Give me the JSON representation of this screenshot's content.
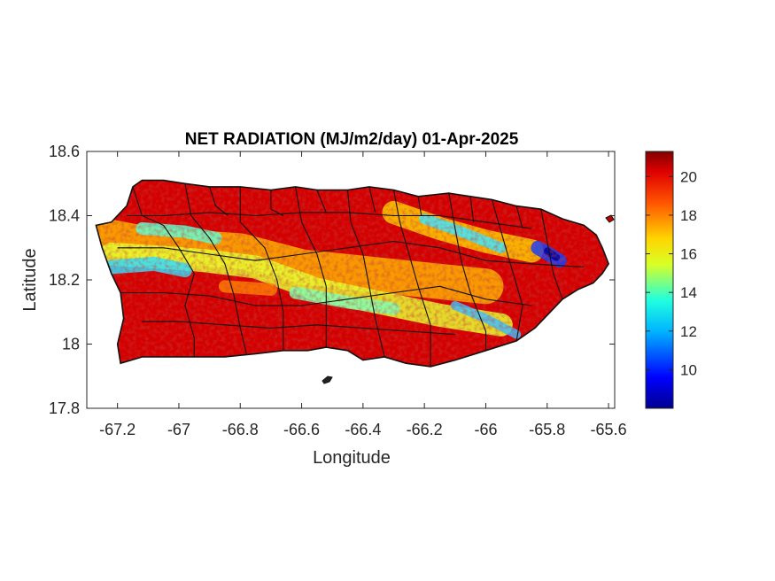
{
  "chart_data": {
    "type": "heatmap",
    "title": "NET RADIATION (MJ/m2/day) 01-Apr-2025",
    "xlabel": "Longitude",
    "ylabel": "Latitude",
    "xlim": [
      -67.3,
      -65.58
    ],
    "ylim": [
      17.8,
      18.6
    ],
    "x_ticks": [
      -67.2,
      -67.0,
      -66.8,
      -66.6,
      -66.4,
      -66.2,
      -66.0,
      -65.8,
      -65.6
    ],
    "x_tick_labels": [
      "-67.2",
      "-67",
      "-66.8",
      "-66.6",
      "-66.4",
      "-66.2",
      "-66",
      "-65.8",
      "-65.6"
    ],
    "y_ticks": [
      17.8,
      18.0,
      18.2,
      18.4,
      18.6
    ],
    "y_tick_labels": [
      "17.8",
      "18",
      "18.2",
      "18.4",
      "18.6"
    ],
    "colorbar": {
      "colormap": "jet",
      "range": [
        8,
        21.3
      ],
      "ticks": [
        10,
        12,
        14,
        16,
        18,
        20
      ],
      "tick_labels": [
        "10",
        "12",
        "14",
        "16",
        "18",
        "20"
      ]
    },
    "grid": false,
    "value_bands": [
      {
        "region": "north coast",
        "approx_value": 20.5
      },
      {
        "region": "west-northwest interior band",
        "approx_value": 14
      },
      {
        "region": "central diagonal band",
        "approx_value": 16
      },
      {
        "region": "east-northeast near -65.78, 18.27",
        "approx_value": 10
      },
      {
        "region": "south coast",
        "approx_value": 20.5
      }
    ],
    "colors": {
      "high": "#c00000",
      "mid": "#f5e23a",
      "low": "#00008f",
      "boundary": "#111111"
    }
  }
}
